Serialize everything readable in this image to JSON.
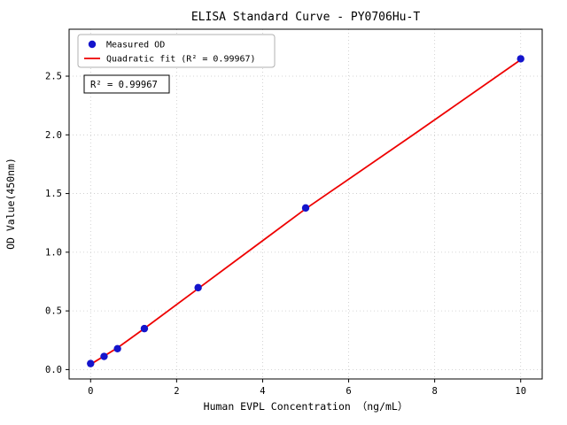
{
  "chart_data": {
    "type": "scatter",
    "title": "ELISA Standard Curve - PY0706Hu-T",
    "xlabel": "Human EVPL Concentration （ng/mL）",
    "ylabel": "OD Value(450nm)",
    "xlim": [
      -0.5,
      10.5
    ],
    "ylim": [
      -0.08,
      2.9
    ],
    "xticks": [
      0,
      2,
      4,
      6,
      8,
      10
    ],
    "xtick_labels": [
      "0",
      "2",
      "4",
      "6",
      "8",
      "10"
    ],
    "yticks": [
      0.0,
      0.5,
      1.0,
      1.5,
      2.0,
      2.5
    ],
    "ytick_labels": [
      "0.0",
      "0.5",
      "1.0",
      "1.5",
      "2.0",
      "2.5"
    ],
    "grid": true,
    "legend_position": "upper left",
    "annotation": "R² = 0.99967",
    "colors": {
      "points": "#1414cc",
      "fit_line": "#ee0000",
      "grid": "#c9c9c9",
      "frame": "#000000",
      "legend_border": "#b0b0b0"
    },
    "series": [
      {
        "name": "Quadratic fit (R² = 0.99967)",
        "kind": "line",
        "color": "#ee0000",
        "x": [
          0,
          0.625,
          1.25,
          2.5,
          3.75,
          5,
          7.5,
          10
        ],
        "y": [
          0.045,
          0.185,
          0.35,
          0.69,
          1.03,
          1.37,
          2.0,
          2.64
        ]
      },
      {
        "name": "Measured OD",
        "kind": "scatter",
        "color": "#1414cc",
        "x": [
          0,
          0.313,
          0.625,
          1.25,
          2.5,
          5,
          10
        ],
        "y": [
          0.051,
          0.112,
          0.178,
          0.349,
          0.698,
          1.377,
          2.648
        ]
      }
    ]
  }
}
